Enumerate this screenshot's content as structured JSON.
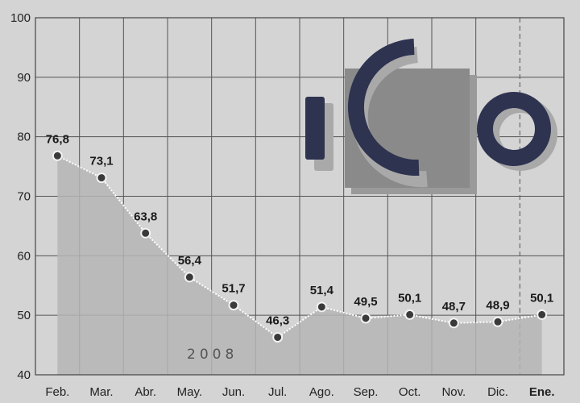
{
  "chart_data": {
    "type": "area",
    "categories": [
      "Feb.",
      "Mar.",
      "Abr.",
      "May.",
      "Jun.",
      "Jul.",
      "Ago.",
      "Sep.",
      "Oct.",
      "Nov.",
      "Dic.",
      "Ene."
    ],
    "values": [
      76.8,
      73.1,
      63.8,
      56.4,
      51.7,
      46.3,
      51.4,
      49.5,
      50.1,
      48.7,
      48.9,
      50.1
    ],
    "value_labels": [
      "76,8",
      "73,1",
      "63,8",
      "56,4",
      "51,7",
      "46,3",
      "51,4",
      "49,5",
      "50,1",
      "48,7",
      "48,9",
      "50,1"
    ],
    "ylim": [
      40,
      100
    ],
    "yticks": [
      40,
      50,
      60,
      70,
      80,
      90,
      100
    ],
    "grid": true,
    "period_label": "2008",
    "bold_categories": [
      "Ene."
    ],
    "title": "",
    "xlabel": "",
    "ylabel": ""
  },
  "logo": {
    "name": "ico-logo",
    "colors": {
      "bar": "#2e3350",
      "square": "#8a8a8a",
      "ring": "#2e3350"
    }
  },
  "colors": {
    "background": "#d4d4d4",
    "fill": "#b5b5b5",
    "grid": "#555555",
    "line": "#ffffff",
    "marker": "#3a3a3a"
  }
}
